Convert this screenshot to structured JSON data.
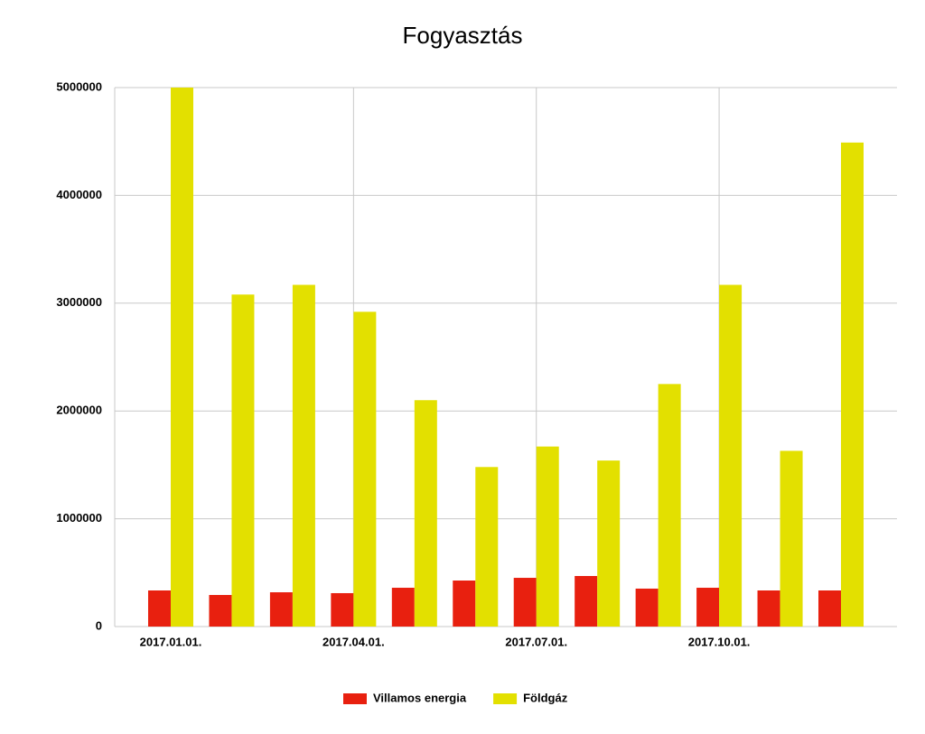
{
  "chart_data": {
    "type": "bar",
    "title": "Fogyasztás",
    "categories": [
      "2017.01.01.",
      null,
      null,
      "2017.04.01.",
      null,
      null,
      "2017.07.01.",
      null,
      null,
      "2017.10.01.",
      null,
      null
    ],
    "series": [
      {
        "name": "Villamos energia",
        "color": "#e8200f",
        "values": [
          335000,
          293000,
          318000,
          310000,
          360000,
          427000,
          452000,
          469000,
          352000,
          360000,
          335000,
          335000
        ]
      },
      {
        "name": "Földgáz",
        "color": "#e3e000",
        "values": [
          5000000,
          3080000,
          3170000,
          2920000,
          2100000,
          1480000,
          1670000,
          1540000,
          2250000,
          3170000,
          1630000,
          4490000
        ]
      }
    ],
    "ylim": [
      0,
      5000000
    ],
    "yticks": [
      0,
      1000000,
      2000000,
      3000000,
      4000000,
      5000000
    ],
    "grid": true,
    "legend": "bottom"
  }
}
